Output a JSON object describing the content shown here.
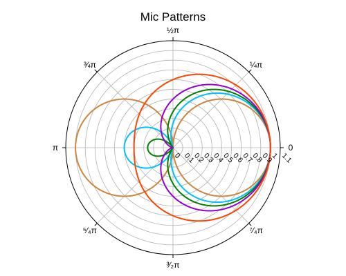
{
  "chart_data": {
    "type": "line",
    "projection": "polar",
    "title": "Mic Patterns",
    "angle_tick_labels": [
      {
        "theta_pi": 0,
        "label": "0"
      },
      {
        "theta_pi": 0.25,
        "label": "¼π"
      },
      {
        "theta_pi": 0.5,
        "label": "½π"
      },
      {
        "theta_pi": 0.75,
        "label": "¾π"
      },
      {
        "theta_pi": 1,
        "label": "π"
      },
      {
        "theta_pi": 1.25,
        "label": "⁵⁄₄π"
      },
      {
        "theta_pi": 1.5,
        "label": "³⁄₂π"
      },
      {
        "theta_pi": 1.75,
        "label": "⁷⁄₄π"
      }
    ],
    "radial_ticks": [
      0,
      0.1,
      0.2,
      0.3,
      0.4,
      0.5,
      0.6,
      0.7,
      0.8,
      0.9,
      1,
      1.1
    ],
    "radial_tick_labels": [
      "0",
      "0.1",
      "0.2",
      "0.3",
      "0.4",
      "0.5",
      "0.6",
      "0.7",
      "0.8",
      "0.9",
      "1",
      "1.1"
    ],
    "rlim": [
      0,
      1.1
    ],
    "grid": true,
    "series": [
      {
        "pattern": "r = |cos θ|",
        "a": 0,
        "color": "#cd853f"
      },
      {
        "pattern": "r = |0.25 + 0.75 cos θ|",
        "a": 0.25,
        "color": "#00bfff"
      },
      {
        "pattern": "r = |0.37 + 0.63 cos θ|",
        "a": 0.37,
        "color": "#008000"
      },
      {
        "pattern": "r = 0.5 + 0.5 cos θ",
        "a": 0.5,
        "color": "#9400d3"
      },
      {
        "pattern": "r = 0.7 + 0.3 cos θ",
        "a": 0.7,
        "color": "#ff4500"
      }
    ]
  }
}
